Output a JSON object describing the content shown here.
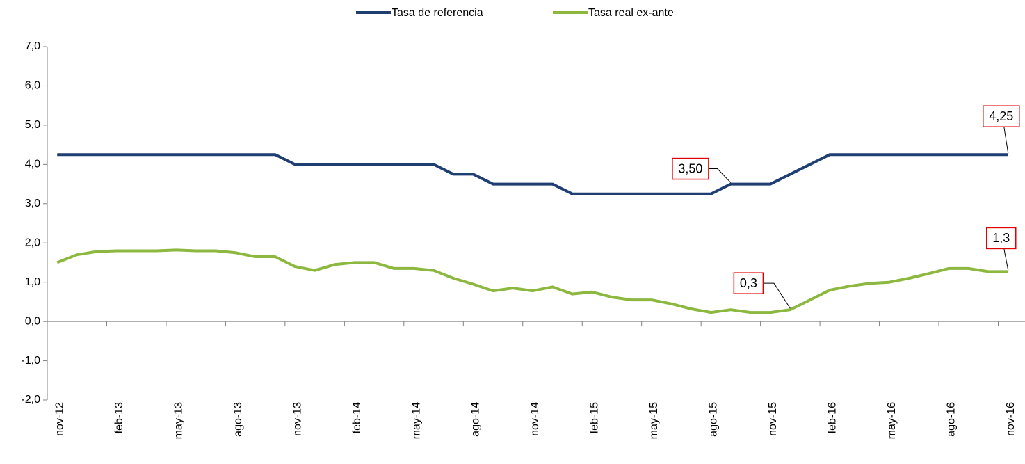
{
  "chart_data": {
    "type": "line",
    "categories": [
      "nov-12",
      null,
      null,
      "feb-13",
      null,
      null,
      "may-13",
      null,
      null,
      "ago-13",
      null,
      null,
      "nov-13",
      null,
      null,
      "feb-14",
      null,
      null,
      "may-14",
      null,
      null,
      "ago-14",
      null,
      null,
      "nov-14",
      null,
      null,
      "feb-15",
      null,
      null,
      "may-15",
      null,
      null,
      "ago-15",
      null,
      null,
      "nov-15",
      null,
      null,
      "feb-16",
      null,
      null,
      "may-16",
      null,
      null,
      "ago-16",
      null,
      null,
      "nov-16"
    ],
    "series": [
      {
        "name": "Tasa de referencia",
        "color": "#1f3f73",
        "values": [
          4.25,
          4.25,
          4.25,
          4.25,
          4.25,
          4.25,
          4.25,
          4.25,
          4.25,
          4.25,
          4.25,
          4.25,
          4.0,
          4.0,
          4.0,
          4.0,
          4.0,
          4.0,
          4.0,
          4.0,
          3.75,
          3.75,
          3.5,
          3.5,
          3.5,
          3.5,
          3.25,
          3.25,
          3.25,
          3.25,
          3.25,
          3.25,
          3.25,
          3.25,
          3.5,
          3.5,
          3.5,
          3.75,
          4.0,
          4.25,
          4.25,
          4.25,
          4.25,
          4.25,
          4.25,
          4.25,
          4.25,
          4.25,
          4.25
        ],
        "value_labels": [
          null,
          null,
          null,
          null,
          null,
          null,
          null,
          null,
          null,
          null,
          null,
          null,
          null,
          null,
          null,
          null,
          null,
          null,
          null,
          null,
          null,
          null,
          null,
          null,
          null,
          null,
          null,
          null,
          null,
          null,
          null,
          null,
          null,
          null,
          "3,50",
          null,
          null,
          null,
          null,
          null,
          null,
          null,
          null,
          null,
          null,
          null,
          null,
          null,
          "4,25"
        ]
      },
      {
        "name": "Tasa real ex-ante",
        "color": "#8cb840",
        "values": [
          1.5,
          1.7,
          1.78,
          1.8,
          1.8,
          1.8,
          1.82,
          1.8,
          1.8,
          1.75,
          1.65,
          1.65,
          1.4,
          1.3,
          1.45,
          1.5,
          1.5,
          1.35,
          1.35,
          1.3,
          1.1,
          0.95,
          0.78,
          0.85,
          0.78,
          0.88,
          0.7,
          0.75,
          0.62,
          0.55,
          0.55,
          0.45,
          0.32,
          0.23,
          0.3,
          0.23,
          0.23,
          0.3,
          0.55,
          0.8,
          0.9,
          0.97,
          1.0,
          1.1,
          1.22,
          1.35,
          1.35,
          1.27,
          1.27
        ],
        "value_labels": [
          null,
          null,
          null,
          null,
          null,
          null,
          null,
          null,
          null,
          null,
          null,
          null,
          null,
          null,
          null,
          null,
          null,
          null,
          null,
          null,
          null,
          null,
          null,
          null,
          null,
          null,
          null,
          null,
          null,
          null,
          null,
          null,
          null,
          null,
          null,
          null,
          null,
          "0,3",
          null,
          null,
          null,
          null,
          null,
          null,
          null,
          null,
          null,
          null,
          "1,3"
        ]
      }
    ],
    "ylim": [
      -2,
      7
    ],
    "yticks": [
      {
        "value": -2,
        "label": "-2,0"
      },
      {
        "value": -1,
        "label": "-1,0"
      },
      {
        "value": 0,
        "label": "0,0"
      },
      {
        "value": 1,
        "label": "1,0"
      },
      {
        "value": 2,
        "label": "2,0"
      },
      {
        "value": 3,
        "label": "3,0"
      },
      {
        "value": 4,
        "label": "4,0"
      },
      {
        "value": 5,
        "label": "5,0"
      },
      {
        "value": 6,
        "label": "6,0"
      },
      {
        "value": 7,
        "label": "7,0"
      }
    ],
    "grid": false,
    "legend": "top"
  }
}
